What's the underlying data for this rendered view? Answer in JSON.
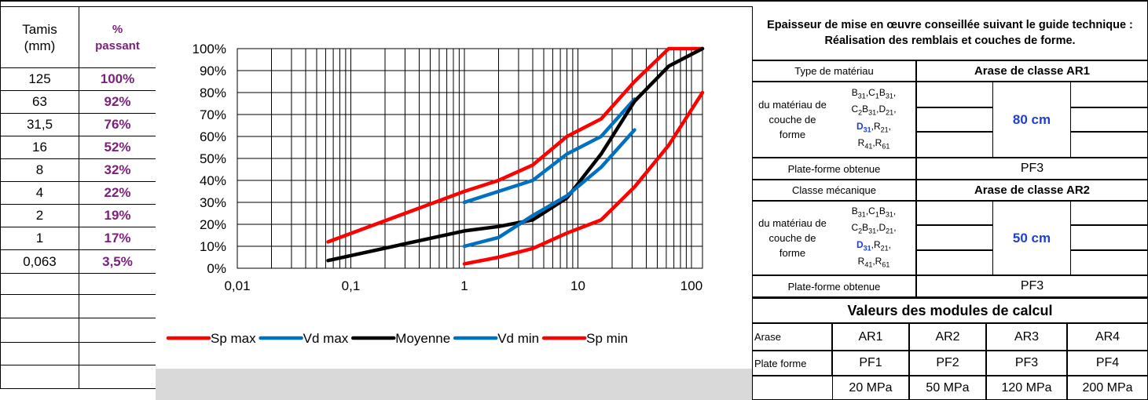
{
  "left_table": {
    "header_tamis": "Tamis\n(mm)",
    "header_pct": "%\npassant",
    "rows": [
      {
        "tamis": "125",
        "pct": "100%"
      },
      {
        "tamis": "63",
        "pct": "92%"
      },
      {
        "tamis": "31,5",
        "pct": "76%"
      },
      {
        "tamis": "16",
        "pct": "52%"
      },
      {
        "tamis": "8",
        "pct": "32%"
      },
      {
        "tamis": "4",
        "pct": "22%"
      },
      {
        "tamis": "2",
        "pct": "19%"
      },
      {
        "tamis": "1",
        "pct": "17%"
      },
      {
        "tamis": "0,063",
        "pct": "3,5%"
      }
    ]
  },
  "right_panel": {
    "guide_title": "Epaisseur de mise en œuvre conseillée suivant le guide technique : Réalisation des remblais et couches de forme.",
    "block1": {
      "label_left": "Type de matériau",
      "label_right": "Arase de classe AR1",
      "material_label": "du matériau de couche de forme",
      "thickness": "80 cm",
      "platform_label": "Plate-forme obtenue",
      "platform_value": "PF3"
    },
    "block2": {
      "label_left": "Classe mécanique",
      "label_right": "Arase de classe AR2",
      "material_label": "du matériau de couche de forme",
      "thickness": "50 cm",
      "platform_label": "Plate-forme obtenue",
      "platform_value": "PF3"
    },
    "modules_title": "Valeurs des modules de calcul",
    "modules": {
      "arase_label": "Arase",
      "arase": [
        "AR1",
        "AR2",
        "AR3",
        "AR4"
      ],
      "plate_label": "Plate forme",
      "plate": [
        "PF1",
        "PF2",
        "PF3",
        "PF4"
      ],
      "values": [
        "20 MPa",
        "50 MPa",
        "120 MPa",
        "200 MPa"
      ]
    }
  },
  "chart_data": {
    "type": "line",
    "x_scale": "log",
    "xlim": [
      0.01,
      125
    ],
    "ylim": [
      0,
      100
    ],
    "x_ticks": [
      "0,01",
      "0,1",
      "1",
      "10",
      "100"
    ],
    "y_ticks": [
      "0%",
      "10%",
      "20%",
      "30%",
      "40%",
      "50%",
      "60%",
      "70%",
      "80%",
      "90%",
      "100%"
    ],
    "grid": true,
    "legend_position": "bottom",
    "series": [
      {
        "name": "Sp max",
        "color": "#ff0000",
        "x": [
          0.063,
          1,
          2,
          4,
          8,
          16,
          31.5,
          63,
          125
        ],
        "y": [
          12,
          35,
          40,
          47,
          60,
          68,
          85,
          100,
          100
        ]
      },
      {
        "name": "Vd max",
        "color": "#0070c0",
        "x": [
          1,
          2,
          4,
          8,
          16,
          31.5
        ],
        "y": [
          30,
          35,
          40,
          52,
          60,
          77
        ]
      },
      {
        "name": "Moyenne",
        "color": "#000000",
        "x": [
          0.063,
          1,
          2,
          4,
          8,
          16,
          31.5,
          63,
          125
        ],
        "y": [
          3.5,
          17,
          19,
          22,
          32,
          52,
          76,
          92,
          100
        ]
      },
      {
        "name": "Vd min",
        "color": "#0070c0",
        "x": [
          1,
          2,
          4,
          8,
          16,
          31.5
        ],
        "y": [
          10,
          14,
          24,
          33,
          46,
          63
        ]
      },
      {
        "name": "Sp min",
        "color": "#ff0000",
        "x": [
          1,
          2,
          4,
          8,
          16,
          31.5,
          63,
          125
        ],
        "y": [
          2,
          5,
          9,
          16,
          22,
          37,
          56,
          80
        ]
      }
    ]
  }
}
